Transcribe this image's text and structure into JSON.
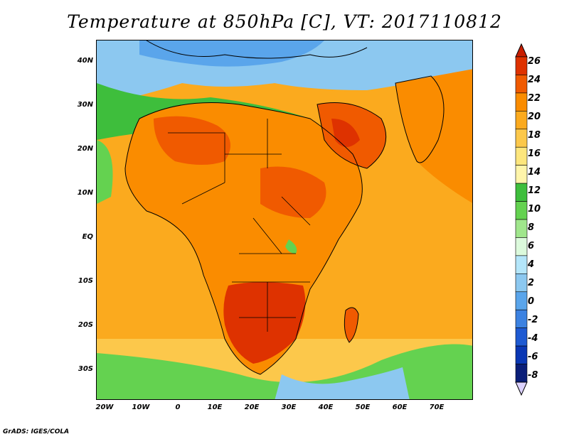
{
  "title": "Temperature at 850hPa [C], VT: 2017110812",
  "credit": "GrADS: IGES/COLA",
  "y_axis_labels": [
    "40N",
    "30N",
    "20N",
    "10N",
    "EQ",
    "10S",
    "20S",
    "30S"
  ],
  "x_axis_labels": [
    "20W",
    "10W",
    "0",
    "10E",
    "20E",
    "30E",
    "40E",
    "50E",
    "60E",
    "70E"
  ],
  "colorbar": {
    "labels": [
      "26",
      "24",
      "22",
      "20",
      "18",
      "16",
      "14",
      "12",
      "10",
      "8",
      "6",
      "4",
      "2",
      "0",
      "-2",
      "-4",
      "-6",
      "-8"
    ],
    "over_color": "#c81e00",
    "under_color": "#dcd2ff",
    "colors": [
      "#de3200",
      "#f05a00",
      "#fa8c00",
      "#fbaa1e",
      "#fcc84b",
      "#fde67d",
      "#fff5aa",
      "#3ebe3c",
      "#64d250",
      "#a0e68c",
      "#dcfadc",
      "#b4e6fa",
      "#8cc8f0",
      "#5aa5eb",
      "#3c82e1",
      "#1e5ad2",
      "#0a37b4",
      "#0a1e78"
    ]
  },
  "map": {
    "ocean_color": "#fbaa1e",
    "land_color": "#fa8c00",
    "hot_color": "#de3200",
    "cool_color": "#64d250",
    "cold_color": "#5aa5eb"
  }
}
